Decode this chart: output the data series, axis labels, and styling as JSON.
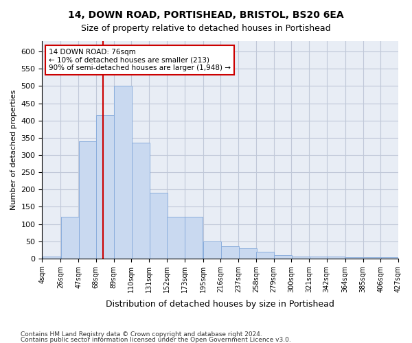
{
  "title1": "14, DOWN ROAD, PORTISHEAD, BRISTOL, BS20 6EA",
  "title2": "Size of property relative to detached houses in Portishead",
  "xlabel": "Distribution of detached houses by size in Portishead",
  "ylabel": "Number of detached properties",
  "footnote1": "Contains HM Land Registry data © Crown copyright and database right 2024.",
  "footnote2": "Contains public sector information licensed under the Open Government Licence v3.0.",
  "annotation_line1": "14 DOWN ROAD: 76sqm",
  "annotation_line2": "← 10% of detached houses are smaller (213)",
  "annotation_line3": "90% of semi-detached houses are larger (1,948) →",
  "vline_x": 76,
  "bar_color": "#c9d9f0",
  "bar_edge_color": "#8aaddc",
  "vline_color": "#cc0000",
  "annotation_box_edge_color": "#cc0000",
  "bin_edges": [
    4,
    26,
    47,
    68,
    89,
    110,
    131,
    152,
    173,
    195,
    216,
    237,
    258,
    279,
    300,
    321,
    342,
    364,
    385,
    406,
    427
  ],
  "bin_labels": [
    "4sqm",
    "26sqm",
    "47sqm",
    "68sqm",
    "89sqm",
    "110sqm",
    "131sqm",
    "152sqm",
    "173sqm",
    "195sqm",
    "216sqm",
    "237sqm",
    "258sqm",
    "279sqm",
    "300sqm",
    "321sqm",
    "342sqm",
    "364sqm",
    "385sqm",
    "406sqm",
    "427sqm"
  ],
  "bar_heights": [
    5,
    120,
    340,
    415,
    500,
    335,
    190,
    120,
    120,
    50,
    35,
    30,
    20,
    10,
    5,
    5,
    5,
    3,
    3,
    3
  ],
  "ylim": [
    0,
    630
  ],
  "yticks": [
    0,
    50,
    100,
    150,
    200,
    250,
    300,
    350,
    400,
    450,
    500,
    550,
    600
  ],
  "grid_color": "#c0c8d8",
  "bg_color": "#e8edf5"
}
